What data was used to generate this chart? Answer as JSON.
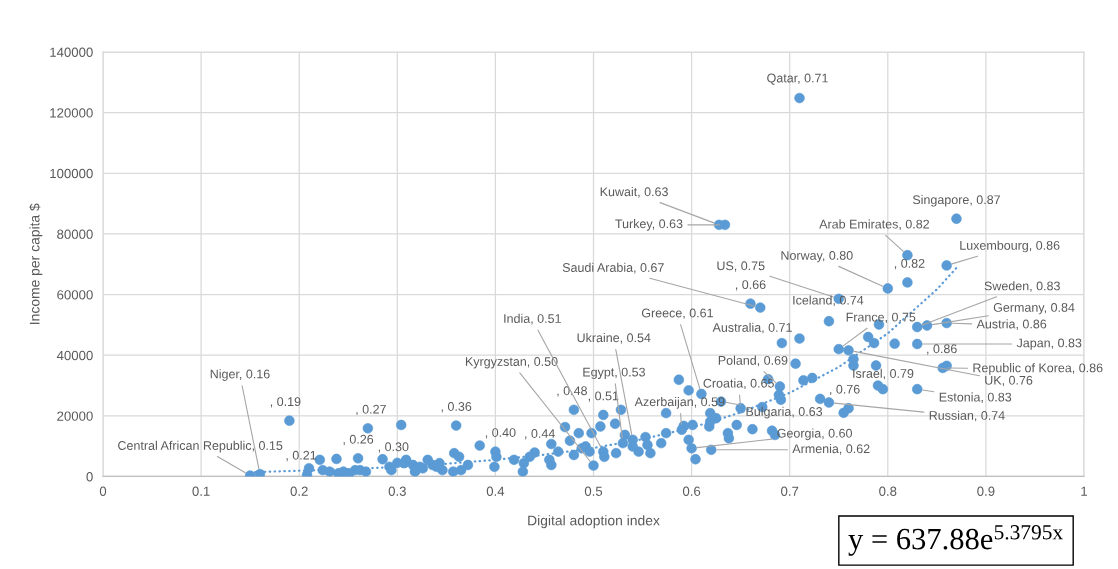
{
  "chart_data": {
    "type": "scatter",
    "xlabel": "Digital adoption index",
    "ylabel": "Income per capita $",
    "xlim": [
      0,
      1
    ],
    "ylim": [
      0,
      140000
    ],
    "xticks": [
      0,
      0.1,
      0.2,
      0.3,
      0.4,
      0.5,
      0.6,
      0.7,
      0.8,
      0.9,
      1
    ],
    "yticks": [
      0,
      20000,
      40000,
      60000,
      80000,
      100000,
      120000,
      140000
    ],
    "grid": true,
    "series": [
      {
        "color": "#5b9bd5",
        "marker": "circle",
        "x": [
          0.15,
          0.16,
          0.19,
          0.21,
          0.26,
          0.27,
          0.3,
          0.36,
          0.4,
          0.44,
          0.48,
          0.51,
          0.5,
          0.51,
          0.54,
          0.53,
          0.61,
          0.59,
          0.65,
          0.63,
          0.6,
          0.62,
          0.69,
          0.71,
          0.67,
          0.66,
          0.628,
          0.634,
          0.71,
          0.75,
          0.74,
          0.8,
          0.82,
          0.82,
          0.87,
          0.86,
          0.83,
          0.84,
          0.86,
          0.83,
          0.86,
          0.856,
          0.75,
          0.76,
          0.79,
          0.83,
          0.74,
          0.76,
          0.208,
          0.221,
          0.224,
          0.231,
          0.238,
          0.24,
          0.245,
          0.251,
          0.257,
          0.262,
          0.268,
          0.285,
          0.292,
          0.294,
          0.304,
          0.309,
          0.318,
          0.323,
          0.34,
          0.307,
          0.316,
          0.319,
          0.326,
          0.331,
          0.336,
          0.343,
          0.346,
          0.358,
          0.363,
          0.372,
          0.365,
          0.357,
          0.384,
          0.401,
          0.399,
          0.419,
          0.429,
          0.428,
          0.435,
          0.457,
          0.455,
          0.457,
          0.464,
          0.471,
          0.476,
          0.48,
          0.485,
          0.488,
          0.492,
          0.498,
          0.496,
          0.507,
          0.511,
          0.522,
          0.523,
          0.528,
          0.532,
          0.54,
          0.546,
          0.553,
          0.555,
          0.558,
          0.569,
          0.574,
          0.574,
          0.587,
          0.597,
          0.592,
          0.601,
          0.597,
          0.604,
          0.619,
          0.618,
          0.619,
          0.625,
          0.637,
          0.638,
          0.646,
          0.662,
          0.672,
          0.682,
          0.685,
          0.678,
          0.689,
          0.691,
          0.706,
          0.714,
          0.723,
          0.731,
          0.692,
          0.78,
          0.786,
          0.791,
          0.807,
          0.765,
          0.765,
          0.788,
          0.795,
          0.755
        ],
        "values": [
          300,
          800,
          18400,
          2700,
          6000,
          15900,
          4500,
          16800,
          8200,
          7900,
          22000,
          20300,
          3600,
          8200,
          12100,
          11000,
          27200,
          15400,
          22500,
          24700,
          9300,
          8800,
          29700,
          45500,
          55700,
          57000,
          83000,
          83000,
          124800,
          58600,
          51200,
          62000,
          73000,
          64000,
          85000,
          69600,
          49300,
          49800,
          50600,
          43700,
          36500,
          35800,
          42000,
          41600,
          30000,
          28800,
          24400,
          22500,
          500,
          5500,
          2100,
          1600,
          5800,
          1000,
          1600,
          1000,
          2100,
          2100,
          1600,
          5700,
          3200,
          2100,
          17000,
          5500,
          1600,
          3200,
          3200,
          4400,
          3800,
          2100,
          2700,
          5500,
          3800,
          4400,
          2100,
          7700,
          6500,
          3800,
          2100,
          1600,
          10200,
          6500,
          3200,
          5500,
          4400,
          1600,
          6500,
          10700,
          5500,
          3800,
          8200,
          16300,
          11800,
          7100,
          14300,
          9300,
          9900,
          14300,
          8200,
          16500,
          6500,
          17400,
          7700,
          22000,
          13700,
          9900,
          8200,
          13000,
          10400,
          7700,
          11000,
          14300,
          20900,
          31900,
          28400,
          16700,
          17000,
          12100,
          5700,
          20900,
          16500,
          18100,
          19200,
          14300,
          12600,
          17000,
          15600,
          22900,
          15100,
          13700,
          32100,
          26900,
          25300,
          37200,
          31700,
          32500,
          25600,
          44000,
          46000,
          44000,
          50100,
          43800,
          38700,
          36600,
          36600,
          28800,
          21000
        ]
      },
      {
        "type": "line",
        "color": "#5b9bd5",
        "line_style": "dotted",
        "marker": "none",
        "x": [
          0.15,
          0.2,
          0.25,
          0.3,
          0.35,
          0.4,
          0.45,
          0.5,
          0.55,
          0.6,
          0.65,
          0.7,
          0.75,
          0.8,
          0.85,
          0.87
        ],
        "values": [
          1400,
          1900,
          2400,
          3200,
          4200,
          5500,
          7200,
          9400,
          12300,
          16100,
          21100,
          27600,
          36100,
          47200,
          61700,
          68800
        ]
      }
    ],
    "annotations": [
      {
        "text": "Central African Republic, 0.15",
        "x": 0.15,
        "y": 300
      },
      {
        "text": "Niger, 0.16",
        "x": 0.16,
        "y": 800
      },
      {
        "text": ", 0.19",
        "x": 0.19,
        "y": 18400
      },
      {
        "text": ", 0.21",
        "x": 0.21,
        "y": 2700
      },
      {
        "text": ", 0.26",
        "x": 0.26,
        "y": 6000
      },
      {
        "text": ", 0.27",
        "x": 0.27,
        "y": 15900
      },
      {
        "text": ", 0.30",
        "x": 0.3,
        "y": 4500
      },
      {
        "text": ", 0.36",
        "x": 0.36,
        "y": 16800
      },
      {
        "text": ", 0.40",
        "x": 0.4,
        "y": 8200
      },
      {
        "text": ", 0.44",
        "x": 0.44,
        "y": 7900
      },
      {
        "text": ", 0.48",
        "x": 0.48,
        "y": 22000
      },
      {
        "text": ", 0.51",
        "x": 0.51,
        "y": 20300
      },
      {
        "text": "Kyrgyzstan, 0.50",
        "x": 0.5,
        "y": 3600
      },
      {
        "text": "India, 0.51",
        "x": 0.51,
        "y": 8200
      },
      {
        "text": "Ukraine, 0.54",
        "x": 0.54,
        "y": 12100
      },
      {
        "text": "Egypt, 0.53",
        "x": 0.53,
        "y": 11000
      },
      {
        "text": "Greece, 0.61",
        "x": 0.61,
        "y": 27200
      },
      {
        "text": "Azerbaijan, 0.59",
        "x": 0.59,
        "y": 15400
      },
      {
        "text": "Croatia, 0.65",
        "x": 0.65,
        "y": 22500
      },
      {
        "text": "Bulgaria, 0.63",
        "x": 0.63,
        "y": 24700
      },
      {
        "text": "Georgia, 0.60",
        "x": 0.6,
        "y": 9300
      },
      {
        "text": "Armenia, 0.62",
        "x": 0.62,
        "y": 8800
      },
      {
        "text": "Poland, 0.69",
        "x": 0.69,
        "y": 29700
      },
      {
        "text": "Australia, 0.71",
        "x": 0.71,
        "y": 45500
      },
      {
        "text": "Saudi Arabia, 0.67",
        "x": 0.67,
        "y": 55700
      },
      {
        "text": ", 0.66",
        "x": 0.66,
        "y": 57000
      },
      {
        "text": "Kuwait, 0.63",
        "x": 0.628,
        "y": 83000
      },
      {
        "text": "Turkey, 0.63",
        "x": 0.634,
        "y": 83000
      },
      {
        "text": "Qatar, 0.71",
        "x": 0.71,
        "y": 124800
      },
      {
        "text": "US, 0.75",
        "x": 0.75,
        "y": 58600
      },
      {
        "text": "Iceland, 0.74",
        "x": 0.74,
        "y": 51200
      },
      {
        "text": "Norway, 0.80",
        "x": 0.8,
        "y": 62000
      },
      {
        "text": "Arab Emirates, 0.82",
        "x": 0.82,
        "y": 73000
      },
      {
        "text": ", 0.82",
        "x": 0.82,
        "y": 64000
      },
      {
        "text": "Singapore, 0.87",
        "x": 0.87,
        "y": 85000
      },
      {
        "text": "Luxembourg, 0.86",
        "x": 0.86,
        "y": 69600
      },
      {
        "text": "Sweden, 0.83",
        "x": 0.83,
        "y": 49300
      },
      {
        "text": "Germany, 0.84",
        "x": 0.84,
        "y": 49800
      },
      {
        "text": "Austria, 0.86",
        "x": 0.86,
        "y": 50600
      },
      {
        "text": "Japan, 0.83",
        "x": 0.83,
        "y": 43700
      },
      {
        "text": ", 0.86",
        "x": 0.86,
        "y": 36500
      },
      {
        "text": "Republic of Korea, 0.86",
        "x": 0.856,
        "y": 35800
      },
      {
        "text": "France, 0.75",
        "x": 0.75,
        "y": 42000
      },
      {
        "text": "UK, 0.76",
        "x": 0.76,
        "y": 41600
      },
      {
        "text": "Israel, 0.79",
        "x": 0.79,
        "y": 30000
      },
      {
        "text": "Estonia, 0.83",
        "x": 0.83,
        "y": 28800
      },
      {
        "text": "Russian, 0.74",
        "x": 0.74,
        "y": 24400
      },
      {
        "text": ", 0.76",
        "x": 0.76,
        "y": 22500
      },
      "y = 637.88e$^{5.3795x}$"
    ]
  }
}
